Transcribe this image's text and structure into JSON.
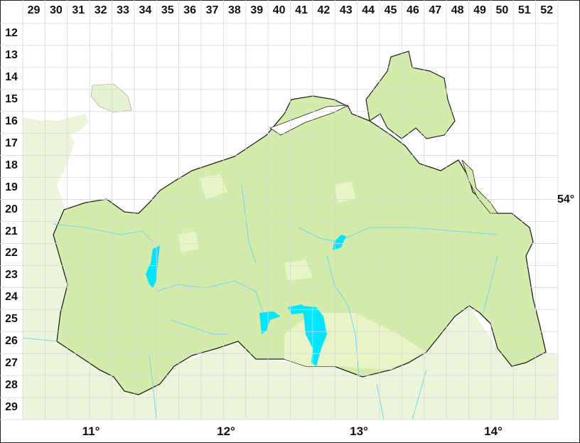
{
  "grid": {
    "columns": [
      "29",
      "30",
      "31",
      "32",
      "33",
      "34",
      "35",
      "36",
      "37",
      "38",
      "39",
      "40",
      "41",
      "42",
      "43",
      "44",
      "45",
      "46",
      "47",
      "48",
      "49",
      "50",
      "51",
      "52"
    ],
    "rows": [
      "12",
      "13",
      "14",
      "15",
      "16",
      "17",
      "18",
      "19",
      "20",
      "21",
      "22",
      "23",
      "24",
      "25",
      "26",
      "27",
      "28",
      "29"
    ]
  },
  "axes": {
    "longitude": [
      "11°",
      "12°",
      "13°",
      "14°"
    ],
    "latitude": "54°"
  },
  "colors": {
    "state_fill": "#d4ecaa",
    "state_lowland": "#e6f4c6",
    "surrounding_land": "#eaf5dc",
    "water": "#00e5ff",
    "rivers": "#6fd8ee",
    "border": "#222222",
    "grid": "#e2e2e2"
  }
}
